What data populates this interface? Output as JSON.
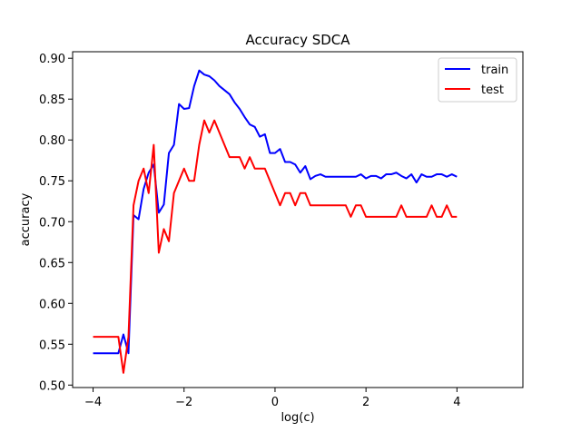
{
  "chart_data": {
    "type": "line",
    "title": "Accuracy SDCA",
    "xlabel": "log(c)",
    "ylabel": "accuracy",
    "xlim": [
      -4.45,
      5.45
    ],
    "ylim": [
      0.497,
      0.908
    ],
    "xticks": [
      -4,
      -2,
      0,
      2,
      4
    ],
    "xtick_labels": [
      "−4",
      "−2",
      "0",
      "2",
      "4"
    ],
    "yticks": [
      0.5,
      0.55,
      0.6,
      0.65,
      0.7,
      0.75,
      0.8,
      0.85,
      0.9
    ],
    "ytick_labels": [
      "0.50",
      "0.55",
      "0.60",
      "0.65",
      "0.70",
      "0.75",
      "0.80",
      "0.85",
      "0.90"
    ],
    "grid": false,
    "legend_position": "top-right",
    "x_start": -4,
    "x_step": 0.1111,
    "series": [
      {
        "name": "train",
        "color": "#0000ff",
        "values": [
          0.539,
          0.539,
          0.539,
          0.539,
          0.539,
          0.539,
          0.562,
          0.539,
          0.708,
          0.703,
          0.74,
          0.76,
          0.77,
          0.711,
          0.721,
          0.784,
          0.794,
          0.844,
          0.838,
          0.839,
          0.866,
          0.885,
          0.88,
          0.878,
          0.873,
          0.866,
          0.861,
          0.856,
          0.846,
          0.838,
          0.828,
          0.819,
          0.816,
          0.804,
          0.807,
          0.784,
          0.784,
          0.789,
          0.773,
          0.773,
          0.77,
          0.76,
          0.768,
          0.752,
          0.756,
          0.758,
          0.755,
          0.755,
          0.755,
          0.755,
          0.755,
          0.755,
          0.755,
          0.758,
          0.753,
          0.756,
          0.756,
          0.753,
          0.758,
          0.758,
          0.76,
          0.756,
          0.753,
          0.758,
          0.748,
          0.758,
          0.755,
          0.755,
          0.758,
          0.758,
          0.755,
          0.758,
          0.755
        ]
      },
      {
        "name": "test",
        "color": "#ff0000",
        "values": [
          0.559,
          0.559,
          0.559,
          0.559,
          0.559,
          0.559,
          0.515,
          0.559,
          0.72,
          0.75,
          0.765,
          0.735,
          0.794,
          0.662,
          0.691,
          0.676,
          0.735,
          0.75,
          0.765,
          0.75,
          0.75,
          0.794,
          0.824,
          0.809,
          0.824,
          0.809,
          0.794,
          0.779,
          0.779,
          0.779,
          0.765,
          0.779,
          0.765,
          0.765,
          0.765,
          0.75,
          0.735,
          0.72,
          0.735,
          0.735,
          0.72,
          0.735,
          0.735,
          0.72,
          0.72,
          0.72,
          0.72,
          0.72,
          0.72,
          0.72,
          0.72,
          0.706,
          0.72,
          0.72,
          0.706,
          0.706,
          0.706,
          0.706,
          0.706,
          0.706,
          0.706,
          0.72,
          0.706,
          0.706,
          0.706,
          0.706,
          0.706,
          0.72,
          0.706,
          0.706,
          0.72,
          0.706,
          0.706
        ]
      }
    ]
  }
}
